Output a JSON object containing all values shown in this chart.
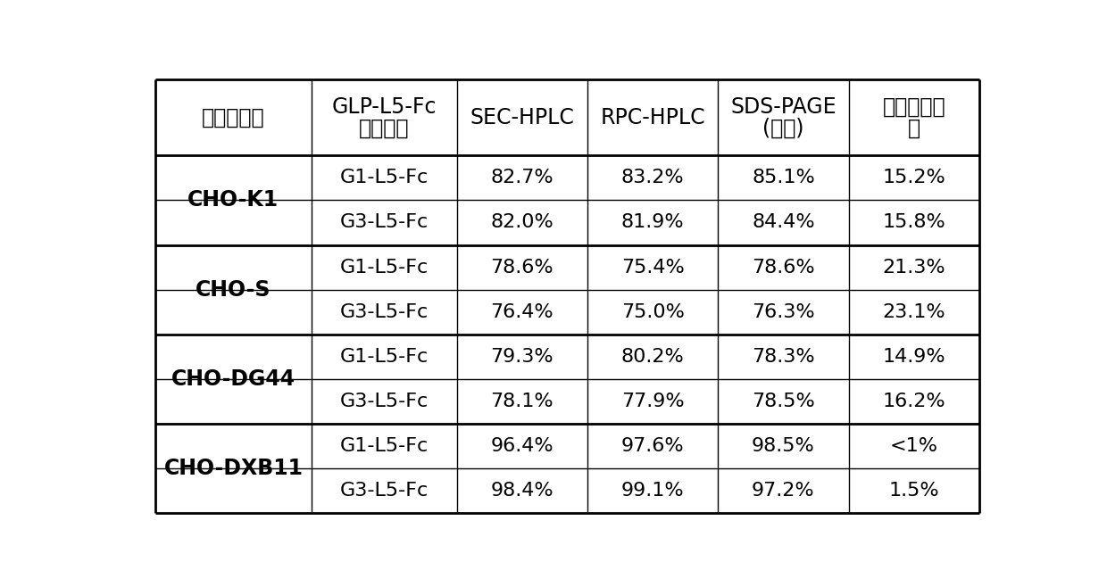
{
  "header_col1_line1": "细胞系类型",
  "header_col2_line1": "GLP-L5-Fc",
  "header_col2_line2": "融合蛋白",
  "header_col3": "SEC-HPLC",
  "header_col4": "RPC-HPLC",
  "header_col5_line1": "SDS-PAGE",
  "header_col5_line2": "(还原)",
  "header_col6_line1": "降解条带比",
  "header_col6_line2": "率",
  "rows": [
    [
      "CHO-K1",
      "G1-L5-Fc",
      "82.7%",
      "83.2%",
      "85.1%",
      "15.2%"
    ],
    [
      "CHO-K1",
      "G3-L5-Fc",
      "82.0%",
      "81.9%",
      "84.4%",
      "15.8%"
    ],
    [
      "CHO-S",
      "G1-L5-Fc",
      "78.6%",
      "75.4%",
      "78.6%",
      "21.3%"
    ],
    [
      "CHO-S",
      "G3-L5-Fc",
      "76.4%",
      "75.0%",
      "76.3%",
      "23.1%"
    ],
    [
      "CHO-DG44",
      "G1-L5-Fc",
      "79.3%",
      "80.2%",
      "78.3%",
      "14.9%"
    ],
    [
      "CHO-DG44",
      "G3-L5-Fc",
      "78.1%",
      "77.9%",
      "78.5%",
      "16.2%"
    ],
    [
      "CHO-DXB11",
      "G1-L5-Fc",
      "96.4%",
      "97.6%",
      "98.5%",
      "<1%"
    ],
    [
      "CHO-DXB11",
      "G3-L5-Fc",
      "98.4%",
      "99.1%",
      "97.2%",
      "1.5%"
    ]
  ],
  "col_weights": [
    1.55,
    1.45,
    1.3,
    1.3,
    1.3,
    1.3
  ],
  "bg_color": "#ffffff",
  "line_color": "#000000",
  "text_color": "#000000",
  "bold_col0": true,
  "font_size_header": 17,
  "font_size_data": 16,
  "font_size_col0": 17
}
